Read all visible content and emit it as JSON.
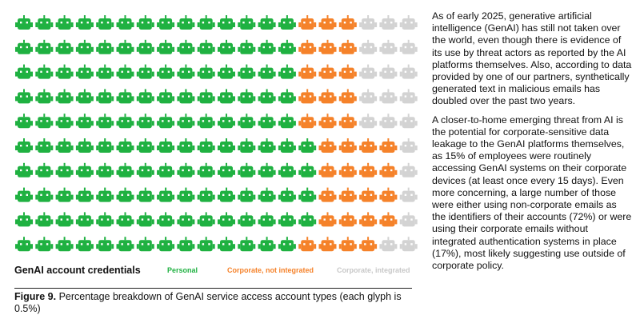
{
  "colors": {
    "personal": "#1fb141",
    "corporate_not_integrated": "#f5822a",
    "corporate_integrated": "#d3d3d3"
  },
  "icon": "robot-icon",
  "chart_data": {
    "type": "waffle",
    "unit_percent_per_glyph": 0.5,
    "rows": 10,
    "columns": 20,
    "legend_title": "GenAI account credentials",
    "series": [
      {
        "name": "Personal",
        "percent": 72,
        "glyphs": 144,
        "color": "#1fb141"
      },
      {
        "name": "Corporate, not integrated",
        "percent": 17,
        "glyphs": 34,
        "color": "#f5822a"
      },
      {
        "name": "Corporate, integrated",
        "percent": 11,
        "glyphs": 22,
        "color": "#d3d3d3"
      }
    ],
    "row_layout": [
      [
        14,
        3,
        3
      ],
      [
        14,
        3,
        3
      ],
      [
        14,
        3,
        3
      ],
      [
        14,
        3,
        3
      ],
      [
        14,
        3,
        3
      ],
      [
        15,
        4,
        1
      ],
      [
        15,
        4,
        1
      ],
      [
        15,
        4,
        1
      ],
      [
        15,
        4,
        1
      ],
      [
        14,
        4,
        2
      ]
    ]
  },
  "caption": {
    "label": "Figure 9.",
    "text": " Percentage breakdown of GenAI service access account types (each glyph is 0.5%)"
  },
  "body_text": {
    "paragraph1": "As of early 2025, generative artificial intelligence (GenAI) has still not taken over the world, even though there is evidence of its use by threat actors as reported by the AI platforms themselves. Also, according to data provided by one of our partners, synthetically generated text in malicious emails has doubled over the past two years.",
    "paragraph2": "A closer-to-home emerging threat from AI is the potential for corporate-sensitive data leakage to the GenAI platforms themselves, as 15% of employees were routinely accessing GenAI systems on their corporate devices (at least once every 15 days). Even more concerning, a large number of those were either using non-corporate emails as the identifiers of their accounts (72%) or were using their corporate emails without integrated authentication systems in place (17%), most likely suggesting use outside of corporate policy."
  }
}
